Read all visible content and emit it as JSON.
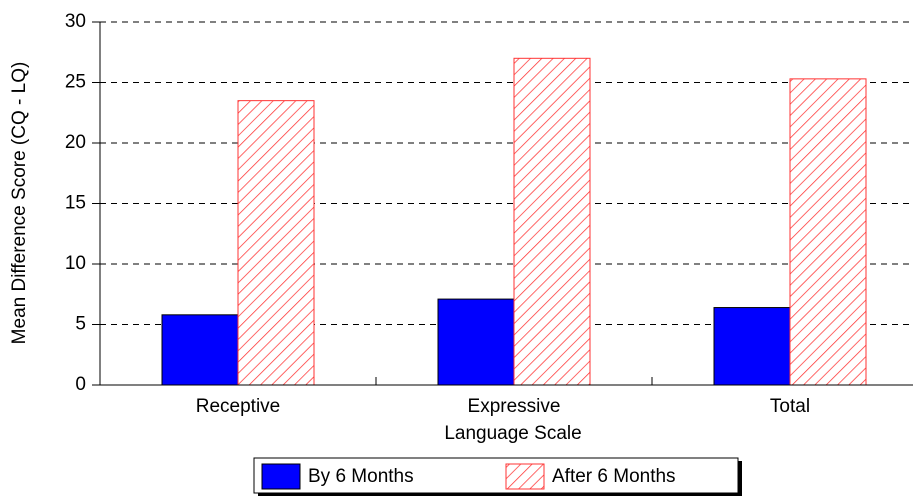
{
  "chart_data": {
    "type": "bar",
    "categories": [
      "Receptive",
      "Expressive",
      "Total"
    ],
    "x_label": "Language Scale",
    "y_label": "Mean Difference Score (CQ - LQ)",
    "series": [
      {
        "name": "By 6 Months",
        "color": "#0000ff",
        "pattern": "solid",
        "values": [
          5.8,
          7.1,
          6.4
        ]
      },
      {
        "name": "After 6 Months",
        "color": "#ff3333",
        "pattern": "hatch",
        "values": [
          23.5,
          27.0,
          25.3
        ]
      }
    ],
    "ylim": [
      0,
      30
    ],
    "yticks": [
      0,
      5,
      10,
      15,
      20,
      25,
      30
    ],
    "grid": true,
    "legend": "bottom"
  }
}
